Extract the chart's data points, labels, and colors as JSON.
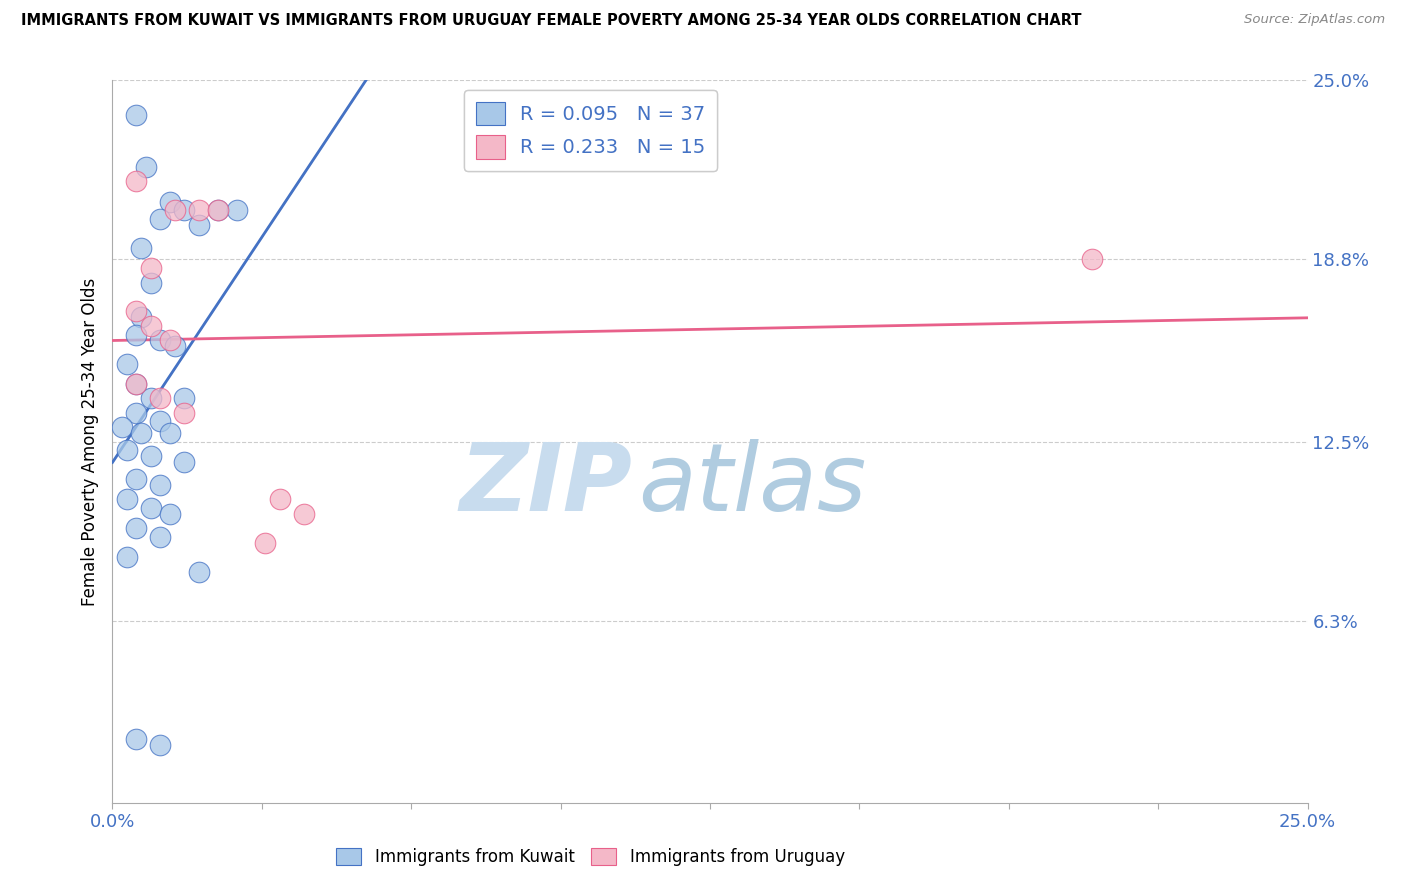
{
  "title": "IMMIGRANTS FROM KUWAIT VS IMMIGRANTS FROM URUGUAY FEMALE POVERTY AMONG 25-34 YEAR OLDS CORRELATION CHART",
  "source": "Source: ZipAtlas.com",
  "ylabel": "Female Poverty Among 25-34 Year Olds",
  "xlim": [
    0,
    25
  ],
  "ylim": [
    0,
    25
  ],
  "ytick_positions": [
    6.3,
    12.5,
    18.8,
    25.0
  ],
  "ytick_labels": [
    "6.3%",
    "12.5%",
    "18.8%",
    "25.0%"
  ],
  "kuwait_R": 0.095,
  "kuwait_N": 37,
  "uruguay_R": 0.233,
  "uruguay_N": 15,
  "kuwait_color": "#a8c8e8",
  "uruguay_color": "#f4b8c8",
  "kuwait_line_color": "#4472c4",
  "uruguay_line_color": "#e8608a",
  "kuwait_dots": [
    [
      0.5,
      23.8
    ],
    [
      0.7,
      22.0
    ],
    [
      1.2,
      20.8
    ],
    [
      1.5,
      20.5
    ],
    [
      2.2,
      20.5
    ],
    [
      2.6,
      20.5
    ],
    [
      1.0,
      20.2
    ],
    [
      1.8,
      20.0
    ],
    [
      0.6,
      19.2
    ],
    [
      0.8,
      18.0
    ],
    [
      0.6,
      16.8
    ],
    [
      0.5,
      16.2
    ],
    [
      1.0,
      16.0
    ],
    [
      1.3,
      15.8
    ],
    [
      0.3,
      15.2
    ],
    [
      0.5,
      14.5
    ],
    [
      0.8,
      14.0
    ],
    [
      1.5,
      14.0
    ],
    [
      0.5,
      13.5
    ],
    [
      1.0,
      13.2
    ],
    [
      0.2,
      13.0
    ],
    [
      0.6,
      12.8
    ],
    [
      1.2,
      12.8
    ],
    [
      0.3,
      12.2
    ],
    [
      0.8,
      12.0
    ],
    [
      1.5,
      11.8
    ],
    [
      0.5,
      11.2
    ],
    [
      1.0,
      11.0
    ],
    [
      0.3,
      10.5
    ],
    [
      0.8,
      10.2
    ],
    [
      1.2,
      10.0
    ],
    [
      0.5,
      9.5
    ],
    [
      1.0,
      9.2
    ],
    [
      0.3,
      8.5
    ],
    [
      1.8,
      8.0
    ],
    [
      0.5,
      2.2
    ],
    [
      1.0,
      2.0
    ]
  ],
  "uruguay_dots": [
    [
      0.5,
      21.5
    ],
    [
      1.3,
      20.5
    ],
    [
      1.8,
      20.5
    ],
    [
      2.2,
      20.5
    ],
    [
      0.8,
      18.5
    ],
    [
      0.5,
      17.0
    ],
    [
      0.8,
      16.5
    ],
    [
      1.2,
      16.0
    ],
    [
      0.5,
      14.5
    ],
    [
      1.0,
      14.0
    ],
    [
      1.5,
      13.5
    ],
    [
      3.5,
      10.5
    ],
    [
      4.0,
      10.0
    ],
    [
      3.2,
      9.0
    ],
    [
      20.5,
      18.8
    ]
  ],
  "watermark_zip": "ZIP",
  "watermark_atlas": "atlas",
  "watermark_zip_color": "#c5dff0",
  "watermark_atlas_color": "#b8d4e8"
}
